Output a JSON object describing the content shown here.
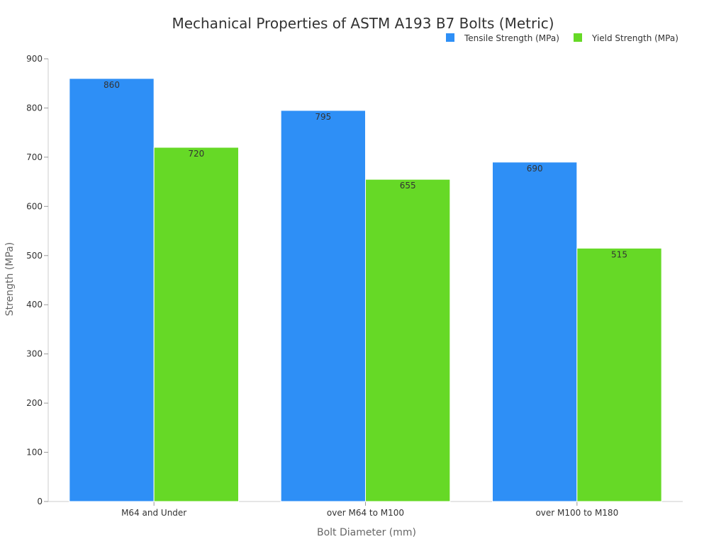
{
  "chart_data": {
    "type": "bar",
    "title": "Mechanical Properties of ASTM A193 B7 Bolts (Metric)",
    "xlabel": "Bolt Diameter (mm)",
    "ylabel": "Strength (MPa)",
    "ylim": [
      0,
      900
    ],
    "yticks": [
      0,
      100,
      200,
      300,
      400,
      500,
      600,
      700,
      800,
      900
    ],
    "categories": [
      "M64 and Under",
      "over M64 to M100",
      "over M100 to M180"
    ],
    "series": [
      {
        "name": "Tensile Strength (MPa)",
        "values": [
          860,
          795,
          690
        ],
        "color": "#2e8ff6"
      },
      {
        "name": "Yield Strength (MPa)",
        "values": [
          720,
          655,
          515
        ],
        "color": "#66d926"
      }
    ],
    "legend_position": "top-right",
    "grid": false,
    "data_labels": true
  }
}
